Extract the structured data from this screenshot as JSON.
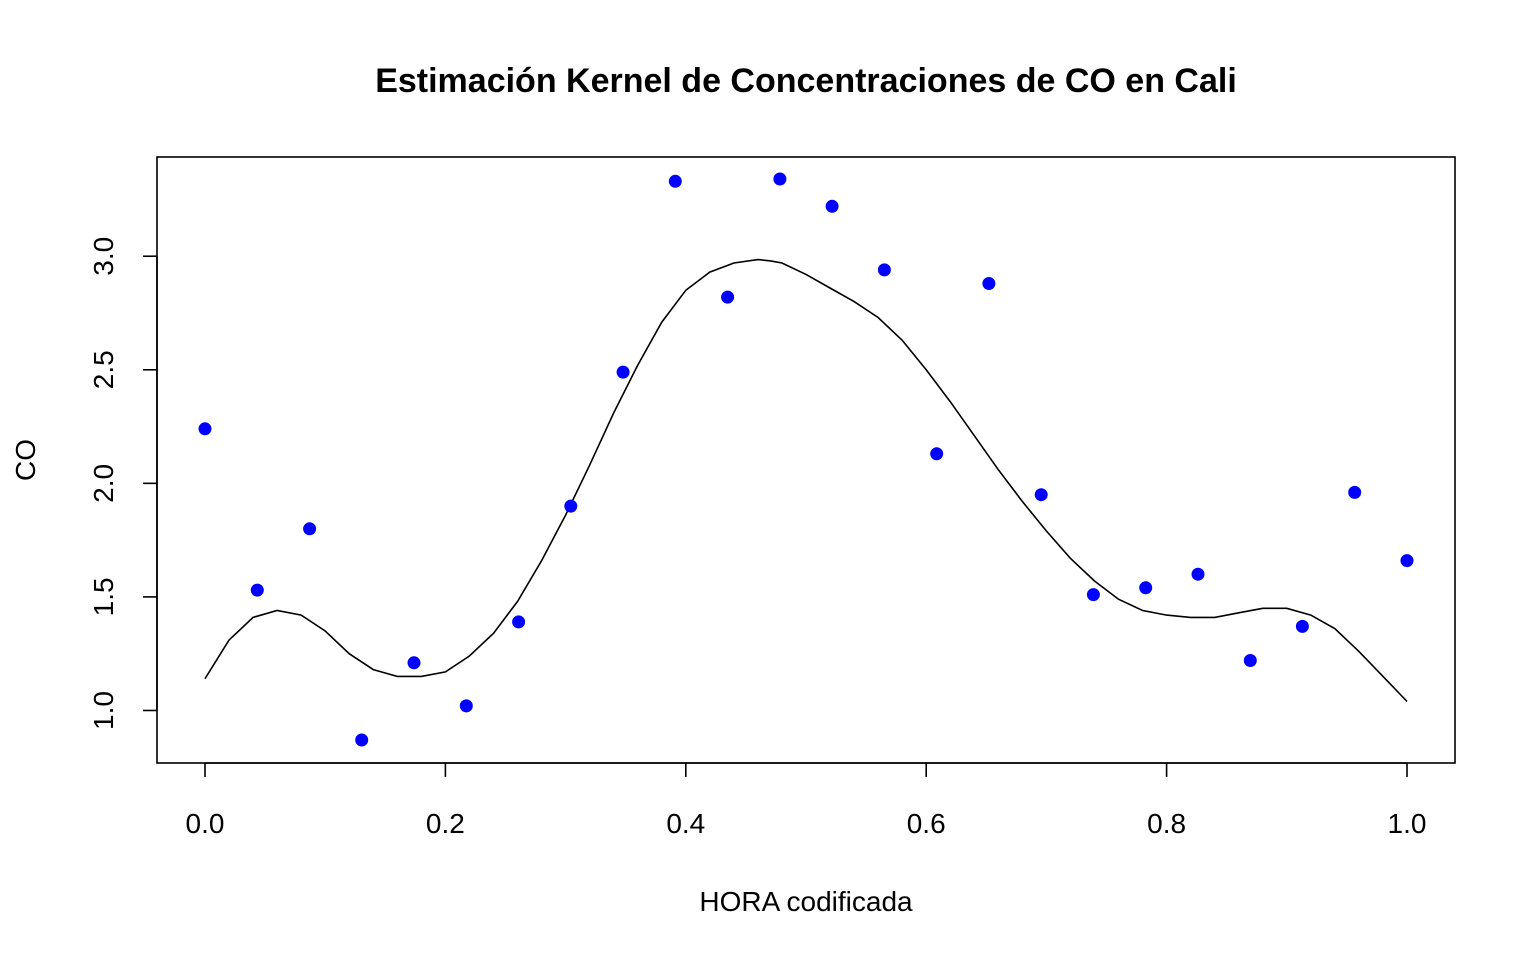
{
  "chart_data": {
    "type": "scatter",
    "title": "Estimación Kernel de Concentraciones de CO en Cali",
    "xlabel": "HORA codificada",
    "ylabel": "CO",
    "xlim": [
      0.0,
      1.0
    ],
    "ylim": [
      0.87,
      3.34
    ],
    "x_ticks": [
      0.0,
      0.2,
      0.4,
      0.6,
      0.8,
      1.0
    ],
    "x_tick_labels": [
      "0.0",
      "0.2",
      "0.4",
      "0.6",
      "0.8",
      "1.0"
    ],
    "y_ticks": [
      1.0,
      1.5,
      2.0,
      2.5,
      3.0
    ],
    "y_tick_labels": [
      "1.0",
      "1.5",
      "2.0",
      "2.5",
      "3.0"
    ],
    "grid": false,
    "point_color": "#0000ff",
    "line_color": "#000000",
    "series": [
      {
        "type": "scatter",
        "x": [
          0.0,
          0.0435,
          0.087,
          0.1304,
          0.1739,
          0.2174,
          0.2609,
          0.3043,
          0.3478,
          0.3913,
          0.4348,
          0.4783,
          0.5217,
          0.5652,
          0.6087,
          0.6522,
          0.6957,
          0.7391,
          0.7826,
          0.8261,
          0.8696,
          0.913,
          0.9565,
          1.0
        ],
        "y": [
          2.24,
          1.53,
          1.8,
          0.87,
          1.21,
          1.02,
          1.39,
          1.9,
          2.49,
          3.33,
          2.82,
          3.34,
          3.22,
          2.94,
          2.13,
          2.88,
          1.95,
          1.51,
          1.54,
          1.6,
          1.22,
          1.37,
          1.96,
          1.66
        ]
      },
      {
        "type": "line",
        "x": [
          0.0,
          0.02,
          0.04,
          0.06,
          0.08,
          0.1,
          0.12,
          0.14,
          0.16,
          0.18,
          0.2,
          0.22,
          0.24,
          0.26,
          0.28,
          0.3,
          0.32,
          0.34,
          0.36,
          0.38,
          0.4,
          0.42,
          0.44,
          0.46,
          0.47,
          0.48,
          0.5,
          0.52,
          0.54,
          0.56,
          0.58,
          0.6,
          0.62,
          0.64,
          0.66,
          0.68,
          0.7,
          0.72,
          0.74,
          0.76,
          0.78,
          0.8,
          0.82,
          0.84,
          0.86,
          0.88,
          0.9,
          0.92,
          0.94,
          0.96,
          0.98,
          1.0
        ],
        "y": [
          1.14,
          1.31,
          1.41,
          1.44,
          1.42,
          1.35,
          1.25,
          1.18,
          1.15,
          1.15,
          1.17,
          1.24,
          1.34,
          1.48,
          1.66,
          1.86,
          2.08,
          2.31,
          2.52,
          2.71,
          2.85,
          2.93,
          2.97,
          2.985,
          2.98,
          2.97,
          2.92,
          2.86,
          2.8,
          2.73,
          2.63,
          2.5,
          2.36,
          2.21,
          2.06,
          1.92,
          1.79,
          1.67,
          1.57,
          1.49,
          1.44,
          1.42,
          1.41,
          1.41,
          1.43,
          1.45,
          1.45,
          1.42,
          1.36,
          1.26,
          1.15,
          1.04
        ]
      }
    ]
  }
}
